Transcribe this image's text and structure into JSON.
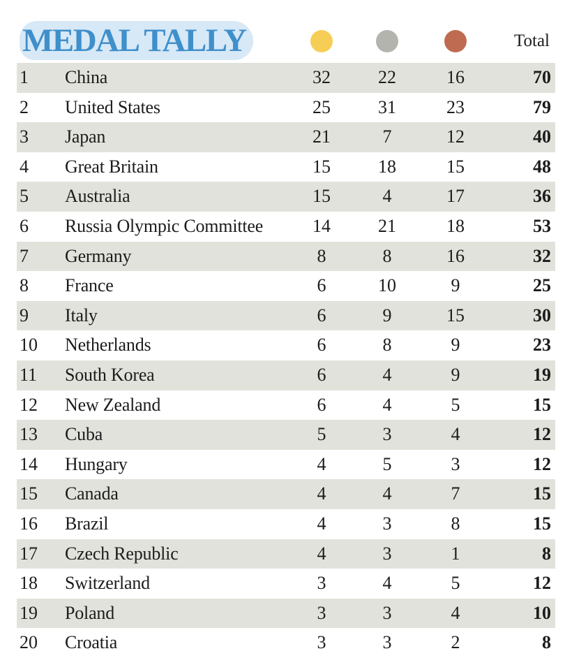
{
  "header": {
    "title": "MEDAL TALLY",
    "total_label": "Total"
  },
  "medal_icons": {
    "gold": {
      "icon": "gold-medal-icon",
      "color": "#f7ce55"
    },
    "silver": {
      "icon": "silver-medal-icon",
      "color": "#b3b4ad"
    },
    "bronze": {
      "icon": "bronze-medal-icon",
      "color": "#bf6b52"
    }
  },
  "colors": {
    "title": "#3f8fcb",
    "title_highlight": "#d7e8f6",
    "row_shade": "#e2e2dc"
  },
  "rows": [
    {
      "rank": "1",
      "country": "China",
      "gold": "32",
      "silver": "22",
      "bronze": "16",
      "total": "70"
    },
    {
      "rank": "2",
      "country": "United States",
      "gold": "25",
      "silver": "31",
      "bronze": "23",
      "total": "79"
    },
    {
      "rank": "3",
      "country": "Japan",
      "gold": "21",
      "silver": "7",
      "bronze": "12",
      "total": "40"
    },
    {
      "rank": "4",
      "country": "Great Britain",
      "gold": "15",
      "silver": "18",
      "bronze": "15",
      "total": "48"
    },
    {
      "rank": "5",
      "country": "Australia",
      "gold": "15",
      "silver": "4",
      "bronze": "17",
      "total": "36"
    },
    {
      "rank": "6",
      "country": "Russia Olympic Committee",
      "gold": "14",
      "silver": "21",
      "bronze": "18",
      "total": "53"
    },
    {
      "rank": "7",
      "country": "Germany",
      "gold": "8",
      "silver": "8",
      "bronze": "16",
      "total": "32"
    },
    {
      "rank": "8",
      "country": "France",
      "gold": "6",
      "silver": "10",
      "bronze": "9",
      "total": "25"
    },
    {
      "rank": "9",
      "country": "Italy",
      "gold": "6",
      "silver": "9",
      "bronze": "15",
      "total": "30"
    },
    {
      "rank": "10",
      "country": "Netherlands",
      "gold": "6",
      "silver": "8",
      "bronze": "9",
      "total": "23"
    },
    {
      "rank": "11",
      "country": "South Korea",
      "gold": "6",
      "silver": "4",
      "bronze": "9",
      "total": "19"
    },
    {
      "rank": "12",
      "country": "New Zealand",
      "gold": "6",
      "silver": "4",
      "bronze": "5",
      "total": "15"
    },
    {
      "rank": "13",
      "country": "Cuba",
      "gold": "5",
      "silver": "3",
      "bronze": "4",
      "total": "12"
    },
    {
      "rank": "14",
      "country": "Hungary",
      "gold": "4",
      "silver": "5",
      "bronze": "3",
      "total": "12"
    },
    {
      "rank": "15",
      "country": "Canada",
      "gold": "4",
      "silver": "4",
      "bronze": "7",
      "total": "15"
    },
    {
      "rank": "16",
      "country": "Brazil",
      "gold": "4",
      "silver": "3",
      "bronze": "8",
      "total": "15"
    },
    {
      "rank": "17",
      "country": "Czech Republic",
      "gold": "4",
      "silver": "3",
      "bronze": "1",
      "total": "8"
    },
    {
      "rank": "18",
      "country": "Switzerland",
      "gold": "3",
      "silver": "4",
      "bronze": "5",
      "total": "12"
    },
    {
      "rank": "19",
      "country": "Poland",
      "gold": "3",
      "silver": "3",
      "bronze": "4",
      "total": "10"
    },
    {
      "rank": "20",
      "country": "Croatia",
      "gold": "3",
      "silver": "3",
      "bronze": "2",
      "total": "8"
    }
  ]
}
